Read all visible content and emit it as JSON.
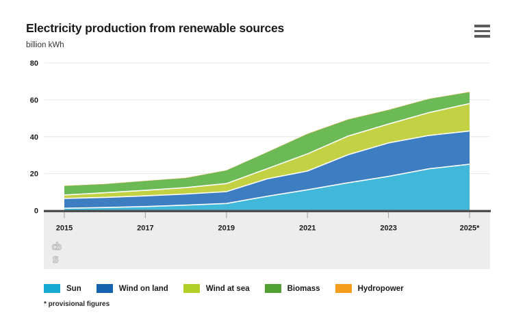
{
  "header": {
    "title": "Electricity production from renewable sources",
    "subtitle": "billion kWh"
  },
  "footnote": "* provisional figures",
  "logo_text": {
    "top": "cb",
    "bottom": "s"
  },
  "chart_data": {
    "type": "area",
    "stacked": true,
    "title": "Electricity production from renewable sources",
    "ylabel": "billion kWh",
    "ylim": [
      0,
      80
    ],
    "y_ticks": [
      "0",
      "20",
      "40",
      "60",
      "80"
    ],
    "grid": true,
    "legend_position": "bottom",
    "x": [
      2015,
      2016,
      2017,
      2018,
      2019,
      2020,
      2021,
      2022,
      2023,
      2024,
      2025
    ],
    "x_tick_years": [
      2015,
      2017,
      2019,
      2021,
      2023,
      2025
    ],
    "x_tick_labels": [
      "2015",
      "2017",
      "2019",
      "2021",
      "2023",
      "2025*"
    ],
    "series": [
      {
        "name": "Sun",
        "color_area": "#41b8d9",
        "color_legend": "#17a9d2",
        "values": [
          1.2,
          1.6,
          2.1,
          2.9,
          3.8,
          7.7,
          11.2,
          15.0,
          18.5,
          22.6,
          25.1
        ]
      },
      {
        "name": "Wind on land",
        "color_area": "#3d7ec3",
        "color_legend": "#1562ae",
        "values": [
          5.3,
          5.5,
          5.8,
          6.0,
          6.4,
          9.4,
          10.2,
          15.2,
          18.1,
          18.1,
          18.0
        ]
      },
      {
        "name": "Wind at sea",
        "color_area": "#c2d244",
        "color_legend": "#b1cf27",
        "values": [
          1.9,
          2.5,
          3.0,
          3.5,
          4.4,
          5.5,
          9.3,
          10.1,
          10.3,
          12.4,
          14.9
        ]
      },
      {
        "name": "Biomass",
        "color_area": "#6cba56",
        "color_legend": "#51a032",
        "values": [
          4.9,
          4.7,
          5.1,
          5.2,
          7.1,
          8.9,
          10.8,
          9.0,
          7.6,
          7.4,
          6.2
        ]
      },
      {
        "name": "Hydropower",
        "color_area": "#f59b1e",
        "color_legend": "#f59b1e",
        "values": [
          0.1,
          0.1,
          0.1,
          0.1,
          0.1,
          0.1,
          0.1,
          0.1,
          0.1,
          0.1,
          0.1
        ]
      }
    ]
  }
}
